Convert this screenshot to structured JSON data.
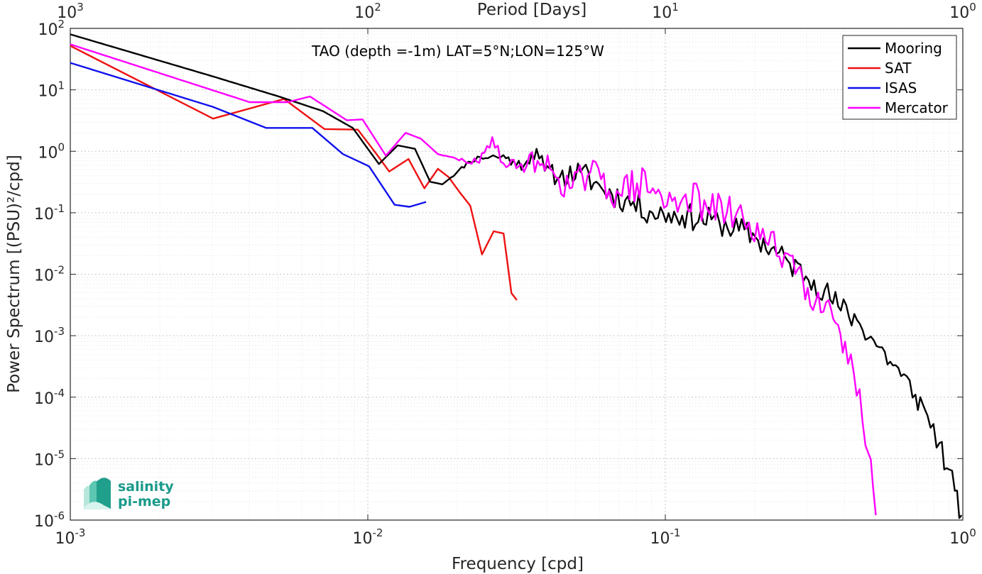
{
  "chart_data": {
    "type": "line",
    "title": "TAO (depth =-1m) LAT=5°N;LON=125°W",
    "xlabel": "Frequency [cpd]",
    "ylabel": "Power Spectrum [(PSU)²/cpd]",
    "top_xlabel": "Period [Days]",
    "xscale": "log",
    "yscale": "log",
    "xlim": [
      0.001,
      1
    ],
    "ylim": [
      1e-06,
      100
    ],
    "grid": true,
    "legend_position": "top-right",
    "x_tick_labels": [
      {
        "base": "10",
        "exp": "-3"
      },
      {
        "base": "10",
        "exp": "-2"
      },
      {
        "base": "10",
        "exp": "-1"
      },
      {
        "base": "10",
        "exp": "0"
      }
    ],
    "top_tick_labels": [
      {
        "base": "10",
        "exp": "3"
      },
      {
        "base": "10",
        "exp": "2"
      },
      {
        "base": "10",
        "exp": "1"
      },
      {
        "base": "10",
        "exp": "0"
      }
    ],
    "y_tick_labels": [
      {
        "base": "10",
        "exp": "-6"
      },
      {
        "base": "10",
        "exp": "-5"
      },
      {
        "base": "10",
        "exp": "-4"
      },
      {
        "base": "10",
        "exp": "-3"
      },
      {
        "base": "10",
        "exp": "-2"
      },
      {
        "base": "10",
        "exp": "-1"
      },
      {
        "base": "10",
        "exp": "0"
      },
      {
        "base": "10",
        "exp": "1"
      },
      {
        "base": "10",
        "exp": "2"
      }
    ],
    "series": [
      {
        "name": "Mooring",
        "color": "#000000",
        "noise": {
          "seed": 11,
          "amp": 0.22
        },
        "x": [
          0.001,
          0.00302,
          0.00502,
          0.00707,
          0.0089,
          0.0109,
          0.0126,
          0.0144,
          0.0162,
          0.0178,
          0.0199,
          0.0219,
          0.0239,
          0.0269,
          0.0297,
          0.0315,
          0.0343,
          0.0369,
          0.0393,
          0.0442,
          0.0519,
          0.0611,
          0.0733,
          0.0905,
          0.114,
          0.152,
          0.201,
          0.262,
          0.316,
          0.381,
          0.441,
          0.524,
          0.62,
          0.693,
          0.761,
          0.835,
          0.882,
          0.94,
          0.99
        ],
        "y": [
          80,
          16.5,
          7.8,
          4.5,
          2.4,
          0.62,
          1.25,
          1.1,
          0.32,
          0.29,
          0.45,
          0.68,
          0.8,
          0.82,
          0.8,
          0.58,
          0.7,
          1.1,
          0.48,
          0.38,
          0.46,
          0.25,
          0.16,
          0.1,
          0.09,
          0.07,
          0.04,
          0.015,
          0.008,
          0.003,
          0.0018,
          0.00065,
          0.00022,
          0.00011,
          5e-05,
          1.8e-05,
          7e-06,
          3e-06,
          1.2e-06
        ]
      },
      {
        "name": "SAT",
        "color": "#ee1111",
        "x": [
          0.001,
          0.00302,
          0.00523,
          0.00715,
          0.00926,
          0.0107,
          0.0118,
          0.0137,
          0.0155,
          0.0172,
          0.0187,
          0.0203,
          0.0221,
          0.0242,
          0.0265,
          0.0286,
          0.0304,
          0.0317
        ],
        "y": [
          52,
          3.4,
          7.1,
          2.3,
          2.25,
          0.9,
          0.47,
          0.75,
          0.25,
          0.52,
          0.38,
          0.22,
          0.13,
          0.021,
          0.05,
          0.046,
          0.0049,
          0.0038
        ]
      },
      {
        "name": "ISAS",
        "color": "#1111ee",
        "x": [
          0.001,
          0.00301,
          0.00455,
          0.00651,
          0.00825,
          0.0101,
          0.0123,
          0.0138,
          0.0157
        ],
        "y": [
          27.5,
          5.3,
          2.4,
          2.4,
          0.9,
          0.57,
          0.135,
          0.125,
          0.15
        ]
      },
      {
        "name": "Mercator",
        "color": "#ff00ff",
        "noise": {
          "seed": 29,
          "amp": 0.3
        },
        "x": [
          0.001,
          0.00401,
          0.00537,
          0.00639,
          0.0085,
          0.0096,
          0.0115,
          0.0134,
          0.0151,
          0.0172,
          0.0199,
          0.0211,
          0.0237,
          0.0262,
          0.0292,
          0.0328,
          0.0372,
          0.0418,
          0.0477,
          0.0548,
          0.0608,
          0.0701,
          0.0803,
          0.0908,
          0.1012,
          0.117,
          0.138,
          0.161,
          0.191,
          0.222,
          0.263,
          0.301,
          0.347,
          0.381,
          0.402,
          0.43,
          0.46,
          0.482,
          0.499,
          0.51
        ],
        "y": [
          55,
          6.3,
          6.3,
          7.8,
          3.2,
          3.3,
          0.85,
          2.0,
          1.6,
          0.9,
          0.75,
          0.7,
          0.65,
          1.7,
          0.55,
          0.62,
          0.7,
          0.48,
          0.25,
          0.4,
          0.35,
          0.2,
          0.3,
          0.25,
          0.13,
          0.2,
          0.12,
          0.1,
          0.07,
          0.03,
          0.02,
          0.006,
          0.0035,
          0.0015,
          0.0008,
          0.00025,
          4e-05,
          1.2e-05,
          3.5e-06,
          1.2e-06
        ]
      }
    ]
  },
  "logo": {
    "line1": "salinity",
    "line2": "pi-mep"
  }
}
